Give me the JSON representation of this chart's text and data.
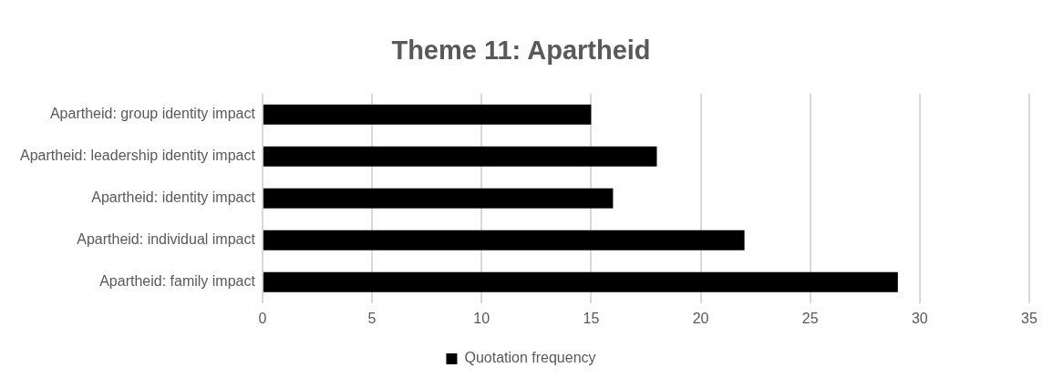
{
  "chart_data": {
    "type": "bar",
    "orientation": "horizontal",
    "title": "Theme 11: Apartheid",
    "categories": [
      "Apartheid: group identity impact",
      "Apartheid: leadership identity impact",
      "Apartheid: identity impact",
      "Apartheid: individual impact",
      "Apartheid: family impact"
    ],
    "series": [
      {
        "name": "Quotation frequency",
        "color": "#000000",
        "values": [
          15,
          18,
          16,
          22,
          29
        ]
      }
    ],
    "xlim": [
      0,
      35
    ],
    "xticks": [
      0,
      5,
      10,
      15,
      20,
      25,
      30,
      35
    ],
    "grid": "x",
    "legend": "bottom"
  }
}
